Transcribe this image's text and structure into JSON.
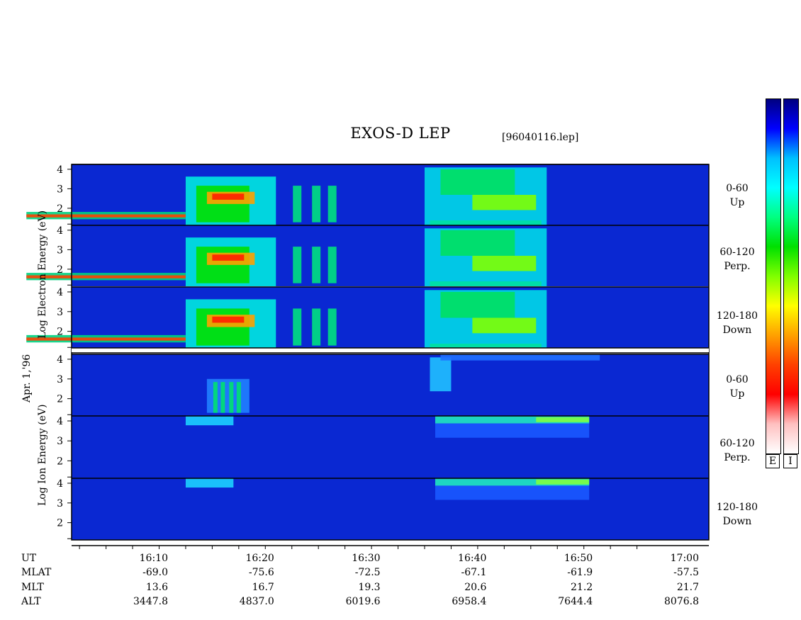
{
  "chart_data": {
    "type": "heatmap",
    "title": "EXOS-D LEP",
    "file": "[96040116.lep]",
    "date_label": "Apr. 1,'96",
    "x_time": [
      "16:10",
      "16:20",
      "16:30",
      "16:40",
      "16:50",
      "17:00"
    ],
    "x_range_minutes": [
      16.0,
      17.2
    ],
    "species": [
      {
        "ylabel": "Log Electron Energy (eV)",
        "name": "Electron",
        "ylim": [
          1,
          4
        ],
        "yticks": [
          "4",
          "3",
          "2"
        ],
        "panels": [
          {
            "pitch": "0-60",
            "dir": "Up"
          },
          {
            "pitch": "60-120",
            "dir": "Perp."
          },
          {
            "pitch": "120-180",
            "dir": "Down"
          }
        ]
      },
      {
        "ylabel": "Log Ion Energy (eV)",
        "name": "Ion",
        "ylim": [
          1,
          4
        ],
        "yticks": [
          "4",
          "3",
          "2"
        ],
        "panels": [
          {
            "pitch": "0-60",
            "dir": "Up"
          },
          {
            "pitch": "60-120",
            "dir": "Perp."
          },
          {
            "pitch": "120-180",
            "dir": "Down"
          }
        ]
      }
    ],
    "ephemeris": {
      "labels": [
        "UT",
        "MLAT",
        "MLT",
        "ALT"
      ],
      "columns": [
        {
          "ut": "16:10",
          "mlat": "-69.0",
          "mlt": "13.6",
          "alt": "3447.8"
        },
        {
          "ut": "16:20",
          "mlat": "-75.6",
          "mlt": "16.7",
          "alt": "4837.0"
        },
        {
          "ut": "16:30",
          "mlat": "-72.5",
          "mlt": "19.3",
          "alt": "6019.6"
        },
        {
          "ut": "16:40",
          "mlat": "-67.1",
          "mlt": "20.6",
          "alt": "6958.4"
        },
        {
          "ut": "16:50",
          "mlat": "-61.9",
          "mlt": "21.2",
          "alt": "7644.4"
        },
        {
          "ut": "17:00",
          "mlat": "-57.5",
          "mlt": "21.7",
          "alt": "8076.8"
        }
      ]
    },
    "colorbar": {
      "labels": [
        "E",
        "I"
      ],
      "colors": [
        "#000080",
        "#0000ff",
        "#00c0ff",
        "#00ffff",
        "#00ff80",
        "#00e000",
        "#80ff00",
        "#ffff00",
        "#ffa000",
        "#ff4000",
        "#ff0000",
        "#ffc0c0",
        "#ffffff"
      ]
    }
  }
}
